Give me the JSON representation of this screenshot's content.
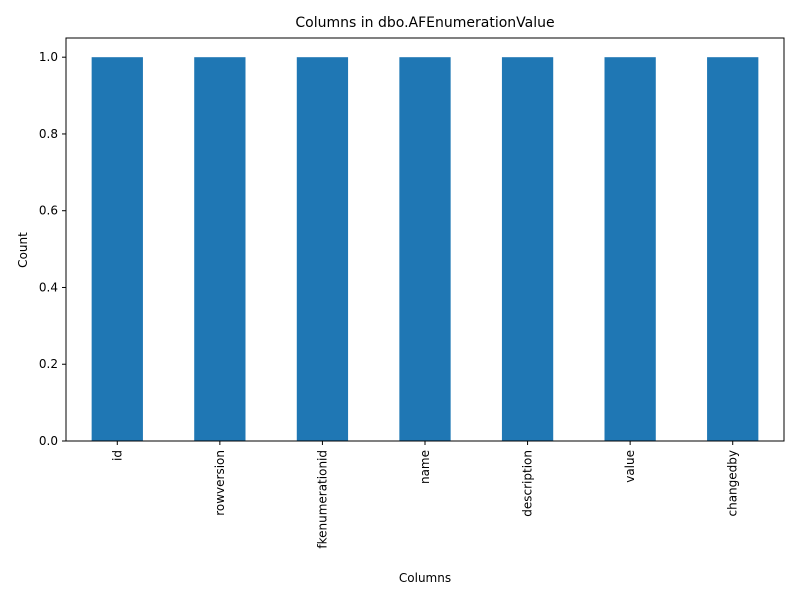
{
  "chart_data": {
    "type": "bar",
    "title": "Columns in dbo.AFEnumerationValue",
    "xlabel": "Columns",
    "ylabel": "Count",
    "categories": [
      "id",
      "rowversion",
      "fkenumerationid",
      "name",
      "description",
      "value",
      "changedby"
    ],
    "values": [
      1,
      1,
      1,
      1,
      1,
      1,
      1
    ],
    "ylim": [
      0,
      1.05
    ],
    "yticks": [
      0.0,
      0.2,
      0.4,
      0.6,
      0.8,
      1.0
    ],
    "ytick_labels": [
      "0.0",
      "0.2",
      "0.4",
      "0.6",
      "0.8",
      "1.0"
    ],
    "bar_color": "#1f77b4",
    "grid": false,
    "legend": "none"
  }
}
